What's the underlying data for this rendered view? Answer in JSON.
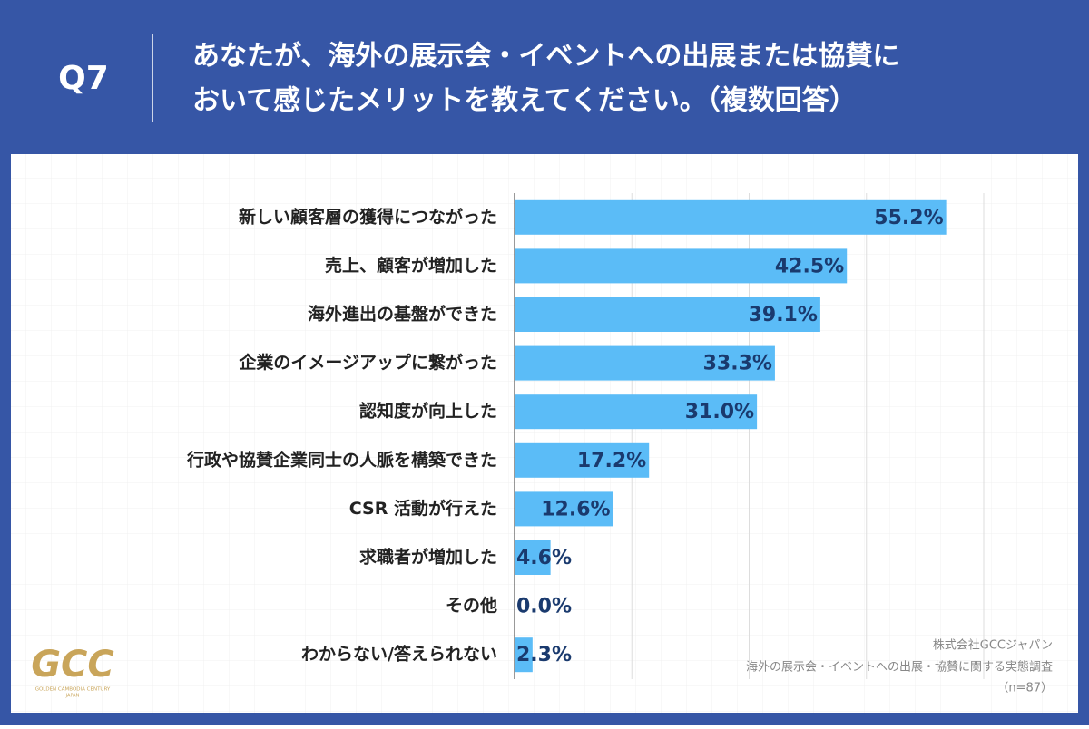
{
  "chart_data": {
    "type": "bar",
    "orientation": "horizontal",
    "question_number": "Q7",
    "title": [
      "あなたが、海外の展示会・イベントへの出展または協賛に",
      "おいて感じたメリットを教えてください。（複数回答）"
    ],
    "categories": [
      "新しい顧客層の獲得につながった",
      "売上、顧客が増加した",
      "海外進出の基盤ができた",
      "企業のイメージアップに繋がった",
      "認知度が向上した",
      "行政や協賛企業同士の人脈を構築できた",
      "CSR 活動が行えた",
      "求職者が増加した",
      "その他",
      "わからない/答えられない"
    ],
    "values": [
      55.2,
      42.5,
      39.1,
      33.3,
      31.0,
      17.2,
      12.6,
      4.6,
      0.0,
      2.3
    ],
    "value_labels": [
      "55.2%",
      "42.5%",
      "39.1%",
      "33.3%",
      "31.0%",
      "17.2%",
      "12.6%",
      "4.6%",
      "0.0%",
      "2.3%"
    ],
    "color": "#5bbcf7",
    "xlim": [
      0,
      60
    ],
    "xticks": [
      0,
      15,
      30,
      45,
      60
    ],
    "grid": true,
    "source": [
      "株式会社GCCジャパン",
      "海外の展示会・イベントへの出展・協賛に関する実態調査",
      "（n=87）"
    ],
    "logo": {
      "text": "GCC",
      "subtitle": "GOLDEN CAMBODIA CENTURY",
      "subtitle2": "JAPAN"
    }
  }
}
